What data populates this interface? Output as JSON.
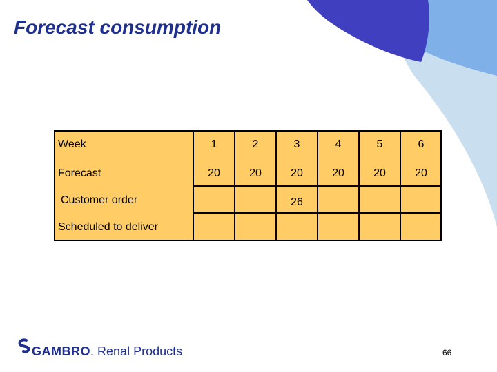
{
  "slide": {
    "title": "Forecast consumption",
    "page_number": "66"
  },
  "table": {
    "header_label": "Week",
    "weeks": [
      "1",
      "2",
      "3",
      "4",
      "5",
      "6"
    ],
    "rows": [
      {
        "label": "Forecast",
        "values": [
          "20",
          "20",
          "20",
          "20",
          "20",
          "20"
        ]
      },
      {
        "label": "Customer order",
        "values": [
          "",
          "",
          "26",
          "",
          "",
          ""
        ]
      },
      {
        "label": "Scheduled to deliver",
        "values": [
          "",
          "",
          "",
          "",
          "",
          ""
        ]
      }
    ]
  },
  "footer": {
    "brand": "GAMBRO",
    "suffix": "Renal Products"
  },
  "colors": {
    "title": "#1f2f8f",
    "table_fill": "#ffcc66",
    "background_dark": "#3f3fbf",
    "background_mid": "#7fb0e8",
    "background_light": "#c9dff0"
  }
}
